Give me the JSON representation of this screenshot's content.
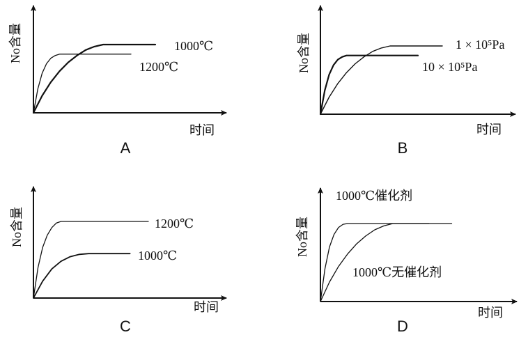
{
  "colors": {
    "ink": "#111111",
    "background": "#ffffff"
  },
  "chart_data": [
    {
      "panel_label": "A",
      "type": "line",
      "ylabel": "No含量",
      "xlabel": "时间",
      "series": [
        {
          "name": "1000℃",
          "values": [
            [
              0,
              0
            ],
            [
              1,
              0.25
            ],
            [
              2,
              0.45
            ],
            [
              3,
              0.61
            ],
            [
              4,
              0.74
            ],
            [
              5,
              0.84
            ],
            [
              6,
              0.92
            ],
            [
              7,
              0.97
            ],
            [
              8,
              1.0
            ],
            [
              9,
              1.0
            ],
            [
              10,
              1.0
            ],
            [
              14,
              1.0
            ]
          ]
        },
        {
          "name": "1200℃",
          "values": [
            [
              0,
              0
            ],
            [
              0.5,
              0.35
            ],
            [
              1,
              0.58
            ],
            [
              1.5,
              0.72
            ],
            [
              2,
              0.8
            ],
            [
              2.5,
              0.84
            ],
            [
              3,
              0.86
            ],
            [
              4,
              0.86
            ],
            [
              8,
              0.86
            ],
            [
              11.2,
              0.86
            ]
          ]
        }
      ]
    },
    {
      "panel_label": "B",
      "type": "line",
      "ylabel": "No含量",
      "xlabel": "时间",
      "series": [
        {
          "name": "1 × 10⁵Pa",
          "values": [
            [
              0,
              0
            ],
            [
              1,
              0.25
            ],
            [
              2,
              0.45
            ],
            [
              3,
              0.61
            ],
            [
              4,
              0.74
            ],
            [
              5,
              0.84
            ],
            [
              6,
              0.92
            ],
            [
              7,
              0.97
            ],
            [
              8,
              1.0
            ],
            [
              9,
              1.0
            ],
            [
              10,
              1.0
            ],
            [
              14,
              1.0
            ]
          ]
        },
        {
          "name": "10 × 10⁵Pa",
          "values": [
            [
              0,
              0
            ],
            [
              0.5,
              0.35
            ],
            [
              1,
              0.58
            ],
            [
              1.5,
              0.72
            ],
            [
              2,
              0.8
            ],
            [
              2.5,
              0.84
            ],
            [
              3,
              0.86
            ],
            [
              4,
              0.86
            ],
            [
              8,
              0.86
            ],
            [
              11.2,
              0.86
            ]
          ]
        }
      ]
    },
    {
      "panel_label": "C",
      "type": "line",
      "ylabel": "No含量",
      "xlabel": "时间",
      "series": [
        {
          "name": "1200℃",
          "values": [
            [
              0,
              0
            ],
            [
              0.5,
              0.4
            ],
            [
              1,
              0.66
            ],
            [
              1.5,
              0.82
            ],
            [
              2,
              0.92
            ],
            [
              2.5,
              0.98
            ],
            [
              3,
              1.0
            ],
            [
              4,
              1.0
            ],
            [
              8,
              1.0
            ],
            [
              12.5,
              1.0
            ]
          ]
        },
        {
          "name": "1000℃",
          "values": [
            [
              0,
              0
            ],
            [
              1,
              0.22
            ],
            [
              2,
              0.38
            ],
            [
              3,
              0.48
            ],
            [
              4,
              0.54
            ],
            [
              5,
              0.57
            ],
            [
              6,
              0.58
            ],
            [
              8,
              0.58
            ],
            [
              10.5,
              0.58
            ]
          ]
        }
      ]
    },
    {
      "panel_label": "D",
      "type": "line",
      "ylabel": "No含量",
      "xlabel": "时间",
      "series": [
        {
          "name": "1000℃催化剂",
          "values": [
            [
              0,
              0
            ],
            [
              0.5,
              0.42
            ],
            [
              1,
              0.7
            ],
            [
              1.5,
              0.86
            ],
            [
              2,
              0.95
            ],
            [
              2.5,
              0.99
            ],
            [
              3,
              1.0
            ],
            [
              6,
              1.0
            ],
            [
              10,
              1.0
            ],
            [
              14.5,
              1.0
            ]
          ]
        },
        {
          "name": "1000℃无催化剂",
          "values": [
            [
              0,
              0
            ],
            [
              1,
              0.25
            ],
            [
              2,
              0.45
            ],
            [
              3,
              0.61
            ],
            [
              4,
              0.74
            ],
            [
              5,
              0.84
            ],
            [
              6,
              0.92
            ],
            [
              7,
              0.97
            ],
            [
              8,
              1.0
            ],
            [
              10,
              1.0
            ],
            [
              12,
              1.0
            ]
          ]
        }
      ]
    }
  ]
}
